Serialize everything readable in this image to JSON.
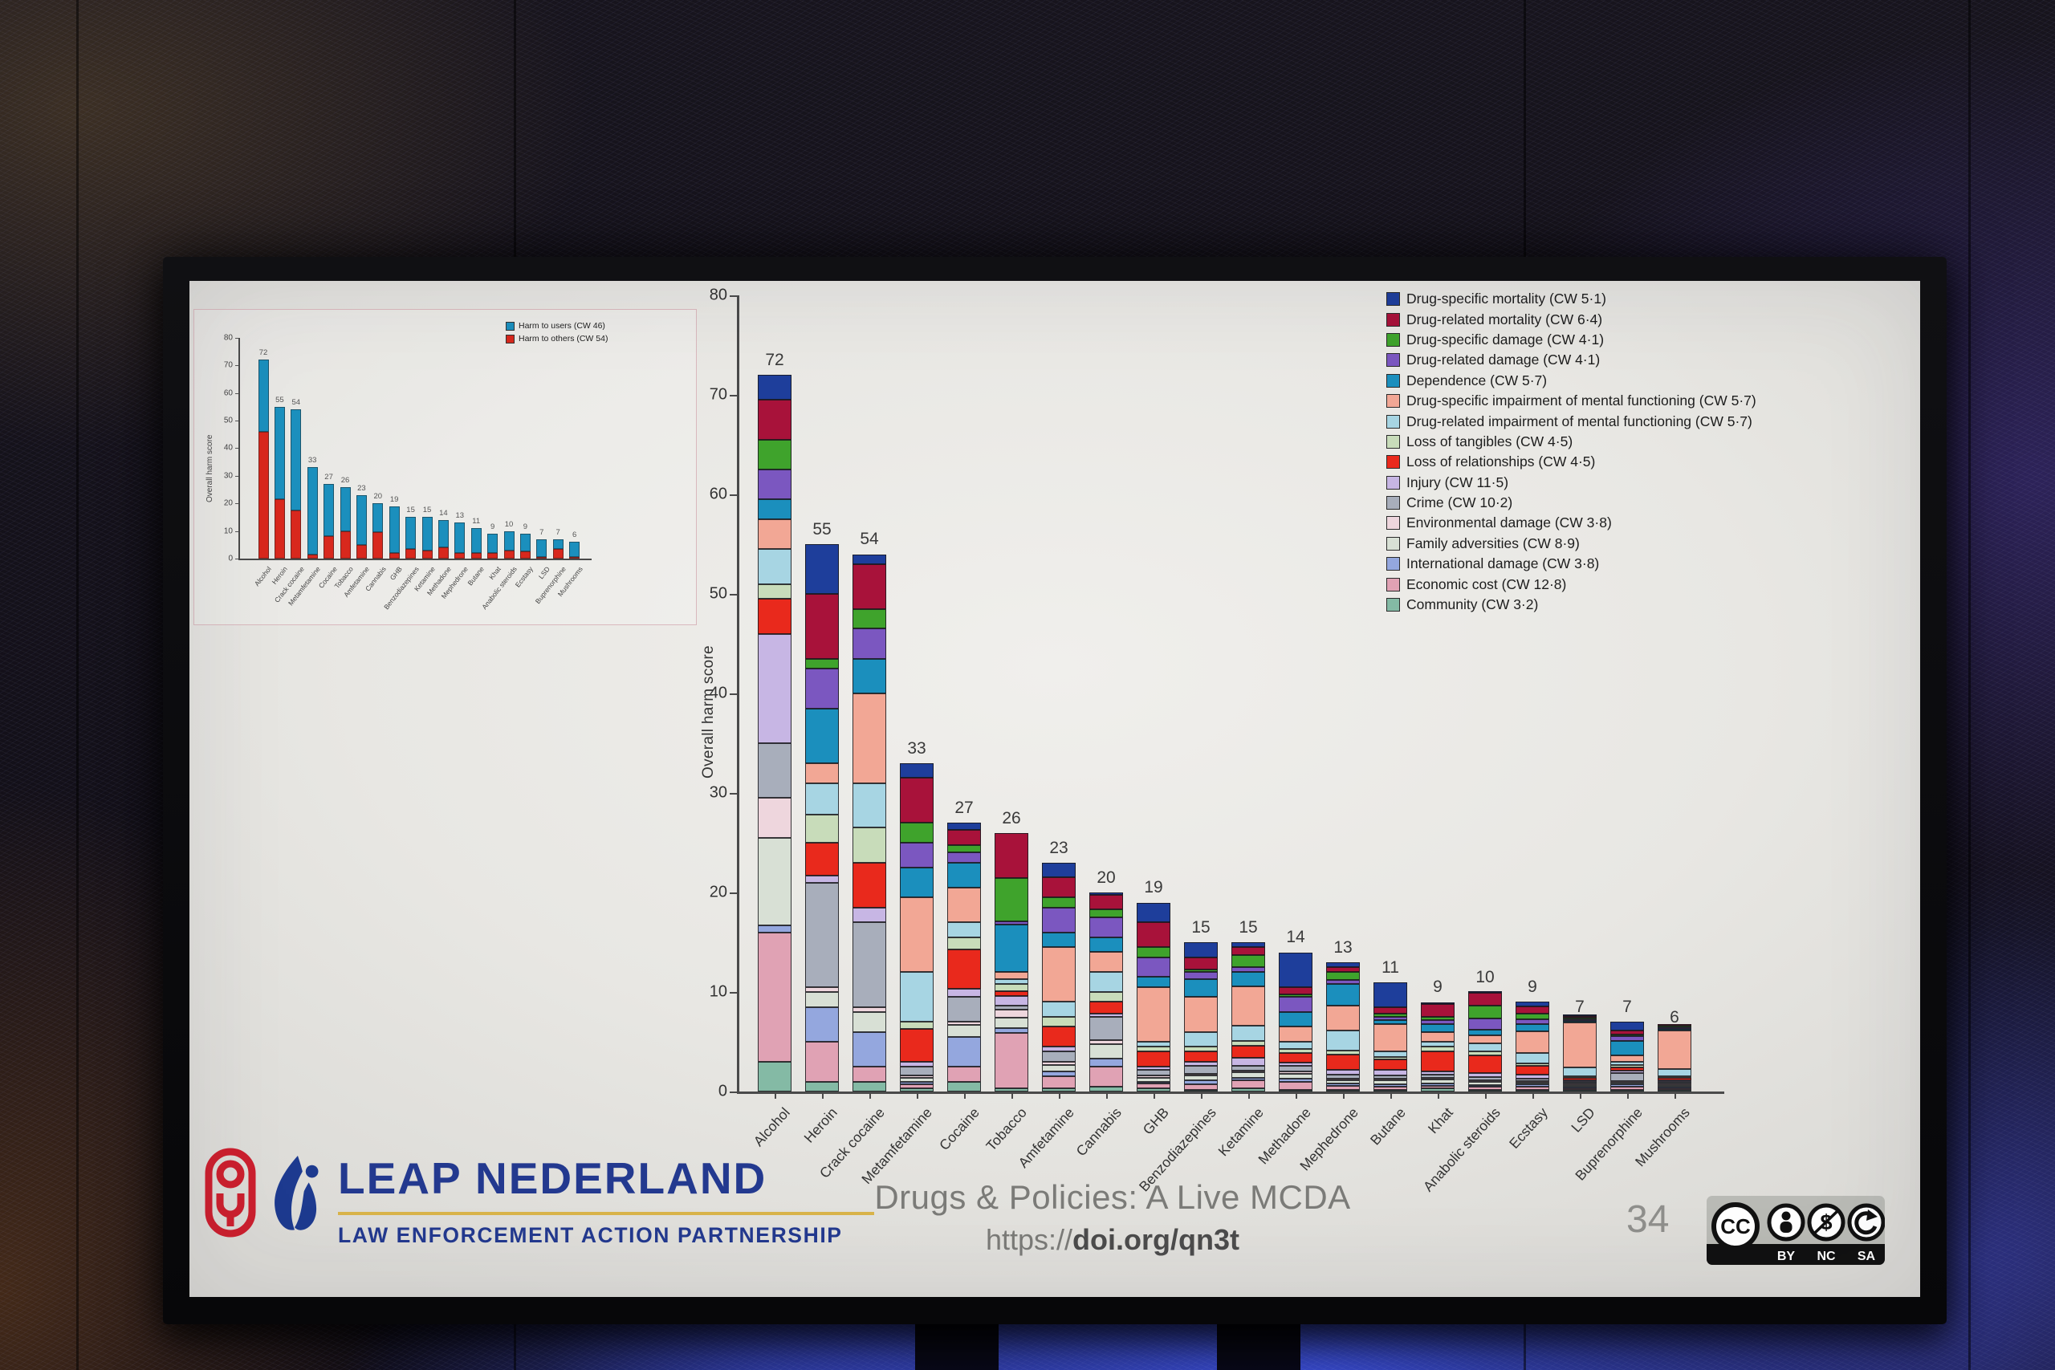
{
  "footer": {
    "brand": "LEAP NEDERLAND",
    "brand_sub": "LAW ENFORCEMENT ACTION PARTNERSHIP",
    "title": "Drugs & Policies: A Live MCDA",
    "url_prefix": "https://",
    "url_bold": "doi.org/qn3t",
    "page_number": "34",
    "cc_labels": [
      "BY",
      "NC",
      "SA"
    ]
  },
  "chart_data": [
    {
      "type": "bar",
      "stacked": true,
      "title": "",
      "xlabel": "",
      "ylabel": "Overall harm score",
      "ylim": [
        0,
        80
      ],
      "yticks": [
        0,
        10,
        20,
        30,
        40,
        50,
        60,
        70,
        80
      ],
      "grid": false,
      "legend_position": "top-right",
      "categories": [
        "Alcohol",
        "Heroin",
        "Crack cocaine",
        "Metamfetamine",
        "Cocaine",
        "Tobacco",
        "Amfetamine",
        "Cannabis",
        "GHB",
        "Benzodiazepines",
        "Ketamine",
        "Methadone",
        "Mephedrone",
        "Butane",
        "Khat",
        "Anabolic steroids",
        "Ecstasy",
        "LSD",
        "Buprenorphine",
        "Mushrooms"
      ],
      "totals": [
        72,
        55,
        54,
        33,
        27,
        26,
        23,
        20,
        19,
        15,
        15,
        14,
        13,
        11,
        9,
        10,
        9,
        7,
        7,
        6
      ],
      "series": [
        {
          "name": "Drug-specific mortality (CW 5·1)",
          "color": "#1e3e9b",
          "values": [
            2.5,
            5,
            1,
            1.5,
            0.7,
            0,
            1.5,
            0.2,
            2,
            1.5,
            0.5,
            3.5,
            0.5,
            2.5,
            0.2,
            0.2,
            0.5,
            0.05,
            0.9,
            0
          ]
        },
        {
          "name": "Drug-related mortality (CW 6·4)",
          "color": "#a8123a",
          "values": [
            4,
            6.5,
            4.5,
            4.5,
            1.5,
            4.5,
            2,
            1.5,
            2.5,
            1.2,
            0.8,
            0.7,
            0.5,
            0.7,
            1.3,
            1.3,
            0.7,
            0.1,
            0.4,
            0.1
          ]
        },
        {
          "name": "Drug-specific damage (CW 4·1)",
          "color": "#3fa32c",
          "values": [
            3,
            1,
            2,
            2,
            0.8,
            4.4,
            1,
            0.8,
            1,
            0.3,
            1.2,
            0.3,
            0.8,
            0.3,
            0.3,
            1.3,
            0.6,
            0.05,
            0.2,
            0.05
          ]
        },
        {
          "name": "Drug-related damage (CW 4·1)",
          "color": "#7b57c0",
          "values": [
            3,
            4,
            3,
            2.5,
            1,
            0.3,
            2.5,
            2,
            2,
            0.7,
            0.5,
            1.5,
            0.4,
            0.3,
            0.4,
            1.1,
            0.5,
            0.1,
            0.5,
            0.1
          ]
        },
        {
          "name": "Dependence (CW 5·7)",
          "color": "#1b8fbd",
          "values": [
            2,
            5.5,
            3.5,
            3,
            2.5,
            4.8,
            1.5,
            1.5,
            1,
            1.8,
            1.4,
            1.5,
            2.2,
            0.4,
            0.8,
            0.6,
            0.7,
            0.2,
            1.4,
            0.15
          ]
        },
        {
          "name": "Drug-specific impairment of mental functioning (CW 5·7)",
          "color": "#f2a795",
          "values": [
            3,
            2,
            9,
            7.5,
            3.5,
            0.7,
            5.5,
            2,
            5.5,
            3.5,
            4,
            1.5,
            2.5,
            2.8,
            1,
            0.8,
            2.2,
            4.5,
            0.7,
            3.9
          ]
        },
        {
          "name": "Drug-related impairment of mental functioning (CW 5·7)",
          "color": "#a7d5e3",
          "values": [
            3.5,
            3.2,
            4.5,
            5,
            1.5,
            0.5,
            1.5,
            2,
            0.5,
            1.5,
            1.5,
            0.7,
            2,
            0.5,
            0.5,
            0.8,
            1,
            0.9,
            0.3,
            0.7
          ]
        },
        {
          "name": "Loss of tangibles (CW 4·5)",
          "color": "#c8dcba",
          "values": [
            1.5,
            2.8,
            3.5,
            0.7,
            1.2,
            0.7,
            1,
            1,
            0.5,
            0.5,
            0.5,
            0.4,
            0.4,
            0.3,
            0.5,
            0.4,
            0.3,
            0.1,
            0.2,
            0.1
          ]
        },
        {
          "name": "Loss of relationships (CW 4·5)",
          "color": "#e9291c",
          "values": [
            3.5,
            3.3,
            4.5,
            3.3,
            4,
            0.5,
            2,
            1.2,
            1.5,
            1,
            1.2,
            1,
            1.5,
            1,
            2,
            1.8,
            0.9,
            0.2,
            0.4,
            0.2
          ]
        },
        {
          "name": "Injury (CW 11·5)",
          "color": "#c7b6e4",
          "values": [
            11,
            0.7,
            1.5,
            0.5,
            0.8,
            1,
            0.5,
            0.3,
            0.3,
            0.4,
            0.8,
            0.3,
            0.5,
            0.6,
            0.3,
            0.4,
            0.4,
            0.2,
            0.2,
            0.2
          ]
        },
        {
          "name": "Crime (CW 10·2)",
          "color": "#a8aebb",
          "values": [
            5.5,
            10.5,
            8.5,
            0.9,
            2.5,
            0.4,
            1,
            2.3,
            0.6,
            0.8,
            0.5,
            0.6,
            0.4,
            0.3,
            0.3,
            0.3,
            0.2,
            0.1,
            0.8,
            0.1
          ]
        },
        {
          "name": "Environmental damage (CW 3·8)",
          "color": "#eed6dd",
          "values": [
            4,
            0.5,
            0.5,
            0.2,
            0.3,
            0.8,
            0.3,
            0.4,
            0.2,
            0.2,
            0.2,
            0.2,
            0.2,
            0.2,
            0.2,
            0.1,
            0.1,
            0.05,
            0.1,
            0.05
          ]
        },
        {
          "name": "Family adversities (CW 8·9)",
          "color": "#d8e0d5",
          "values": [
            8.8,
            1.5,
            2,
            0.4,
            1.2,
            1,
            0.7,
            1.5,
            0.4,
            0.5,
            0.5,
            0.5,
            0.3,
            0.4,
            0.4,
            0.3,
            0.2,
            0.1,
            0.2,
            0.15
          ]
        },
        {
          "name": "International damage (CW 3·8)",
          "color": "#94a7de",
          "values": [
            0.7,
            3.5,
            3.5,
            0.3,
            3,
            0.5,
            0.5,
            0.8,
            0.2,
            0.4,
            0.3,
            0.3,
            0.2,
            0.2,
            0.2,
            0.1,
            0.2,
            0.05,
            0.2,
            0.05
          ]
        },
        {
          "name": "Economic cost (CW 12·8)",
          "color": "#e0a2b4",
          "values": [
            13,
            4,
            1.5,
            0.4,
            1.5,
            5.6,
            1.2,
            2,
            0.5,
            0.5,
            0.8,
            0.8,
            0.4,
            0.3,
            0.3,
            0.3,
            0.3,
            0.1,
            0.3,
            0.1
          ]
        },
        {
          "name": "Community (CW 3·2)",
          "color": "#84baa5",
          "values": [
            3,
            1,
            1,
            0.3,
            1,
            0.3,
            0.3,
            0.5,
            0.3,
            0.2,
            0.3,
            0.2,
            0.2,
            0.2,
            0.3,
            0.2,
            0.2,
            0.1,
            0.2,
            0.1
          ]
        }
      ]
    },
    {
      "type": "bar",
      "stacked": true,
      "title": "",
      "xlabel": "",
      "ylabel": "Overall harm score",
      "ylim": [
        0,
        80
      ],
      "yticks": [
        0,
        10,
        20,
        30,
        40,
        50,
        60,
        70,
        80
      ],
      "grid": false,
      "legend_position": "top-right",
      "categories": [
        "Alcohol",
        "Heroin",
        "Crack cocaine",
        "Metamfetamine",
        "Cocaine",
        "Tobacco",
        "Amfetamine",
        "Cannabis",
        "GHB",
        "Benzodiazepines",
        "Ketamine",
        "Methadone",
        "Mephedrone",
        "Butane",
        "Khat",
        "Anabolic steroids",
        "Ecstasy",
        "LSD",
        "Buprenorphine",
        "Mushrooms"
      ],
      "totals": [
        72,
        55,
        54,
        33,
        27,
        26,
        23,
        20,
        19,
        15,
        15,
        14,
        13,
        11,
        9,
        10,
        9,
        7,
        7,
        6
      ],
      "series": [
        {
          "name": "Harm to users (CW 46)",
          "color": "#1b8fbd",
          "values": [
            26,
            33.5,
            36.5,
            31.5,
            19,
            16,
            18,
            10.5,
            17,
            11.5,
            12,
            10,
            11,
            9,
            7,
            7,
            6.5,
            6.5,
            3.5,
            5.5
          ]
        },
        {
          "name": "Harm to others (CW 54)",
          "color": "#d8281d",
          "values": [
            46,
            21.5,
            17.5,
            1.5,
            8,
            10,
            5,
            9.5,
            2,
            3.5,
            3,
            4,
            2,
            2,
            2,
            3,
            2.5,
            0.5,
            3.5,
            0.5
          ]
        }
      ]
    }
  ]
}
